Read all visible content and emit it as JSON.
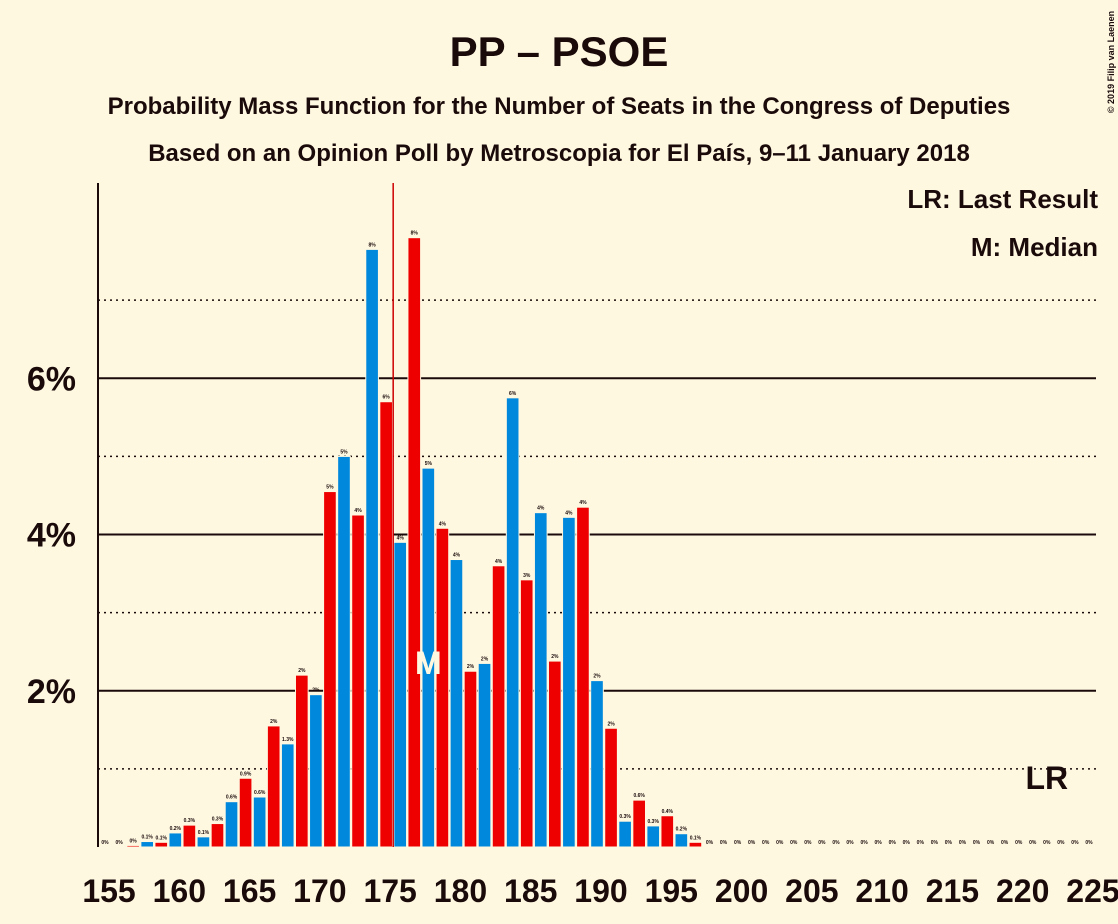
{
  "chart_data": {
    "type": "bar",
    "title": "PP – PSOE",
    "subtitle": "Probability Mass Function for the Number of Seats in the Congress of Deputies",
    "subtitle2": "Based on an Opinion Poll by Metroscopia for El País, 9–11 January 2018",
    "copyright": "© 2019 Filip van Laenen",
    "legend": [
      "LR: Last Result",
      "M: Median"
    ],
    "x": [
      155,
      156,
      157,
      158,
      159,
      160,
      161,
      162,
      163,
      164,
      165,
      166,
      167,
      168,
      169,
      170,
      171,
      172,
      173,
      174,
      175,
      176,
      177,
      178,
      179,
      180,
      181,
      182,
      183,
      184,
      185,
      186,
      187,
      188,
      189,
      190,
      191,
      192,
      193,
      194,
      195,
      196,
      197,
      198,
      199,
      200,
      201,
      202,
      203,
      204,
      205,
      206,
      207,
      208,
      209,
      210,
      211,
      212,
      213,
      214,
      215,
      216,
      217,
      218,
      219,
      220,
      221,
      222,
      223,
      224,
      225
    ],
    "values": [
      0,
      0,
      0.02,
      0.07,
      0.06,
      0.18,
      0.28,
      0.13,
      0.3,
      0.58,
      0.88,
      0.64,
      1.55,
      1.32,
      2.2,
      1.95,
      4.55,
      5.0,
      4.25,
      7.65,
      5.7,
      3.9,
      7.8,
      4.85,
      4.08,
      3.68,
      2.25,
      2.35,
      3.6,
      5.75,
      3.42,
      4.28,
      2.38,
      4.22,
      4.35,
      2.13,
      1.52,
      0.33,
      0.6,
      0.27,
      0.4,
      0.17,
      0.06,
      0,
      0,
      0,
      0,
      0,
      0,
      0,
      0,
      0,
      0,
      0,
      0,
      0,
      0,
      0,
      0,
      0,
      0,
      0,
      0,
      0,
      0,
      0,
      0,
      0,
      0,
      0,
      0
    ],
    "value_labels": [
      "0%",
      "0%",
      "0%",
      "0.1%",
      "0.1%",
      "0.2%",
      "0.3%",
      "0.1%",
      "0.3%",
      "0.6%",
      "0.9%",
      "0.6%",
      "2%",
      "1.3%",
      "2%",
      "2%",
      "5%",
      "5%",
      "4%",
      "8%",
      "6%",
      "4%",
      "8%",
      "5%",
      "4%",
      "4%",
      "2%",
      "2%",
      "4%",
      "6%",
      "3%",
      "4%",
      "2%",
      "4%",
      "4%",
      "2%",
      "2%",
      "0.3%",
      "0.6%",
      "0.3%",
      "0.4%",
      "0.2%",
      "0.1%",
      "0%",
      "0%",
      "0%",
      "0%",
      "0%",
      "0%",
      "0%",
      "0%",
      "0%",
      "0%",
      "0%",
      "0%",
      "0%",
      "0%",
      "0%",
      "0%",
      "0%",
      "0%",
      "0%",
      "0%",
      "0%",
      "0%",
      "0%",
      "0%",
      "0%",
      "0%",
      "0%",
      "0%"
    ],
    "colors": [
      "#0088dd",
      "#ee0000"
    ],
    "xlim": [
      154.5,
      225.5
    ],
    "xticks": [
      155,
      160,
      165,
      170,
      175,
      180,
      185,
      190,
      195,
      200,
      205,
      210,
      215,
      220,
      225
    ],
    "ylim": [
      0,
      8.5
    ],
    "yticks": [
      {
        "value": 2,
        "label": "2%"
      },
      {
        "value": 4,
        "label": "4%"
      },
      {
        "value": 6,
        "label": "6%"
      }
    ],
    "minor_grid": [
      1,
      3,
      5,
      7
    ],
    "threshold_line": 175.5,
    "threshold_color": "#cc0000",
    "last_result": 222,
    "last_result_label": "LR",
    "median": 178,
    "median_label": "M"
  }
}
